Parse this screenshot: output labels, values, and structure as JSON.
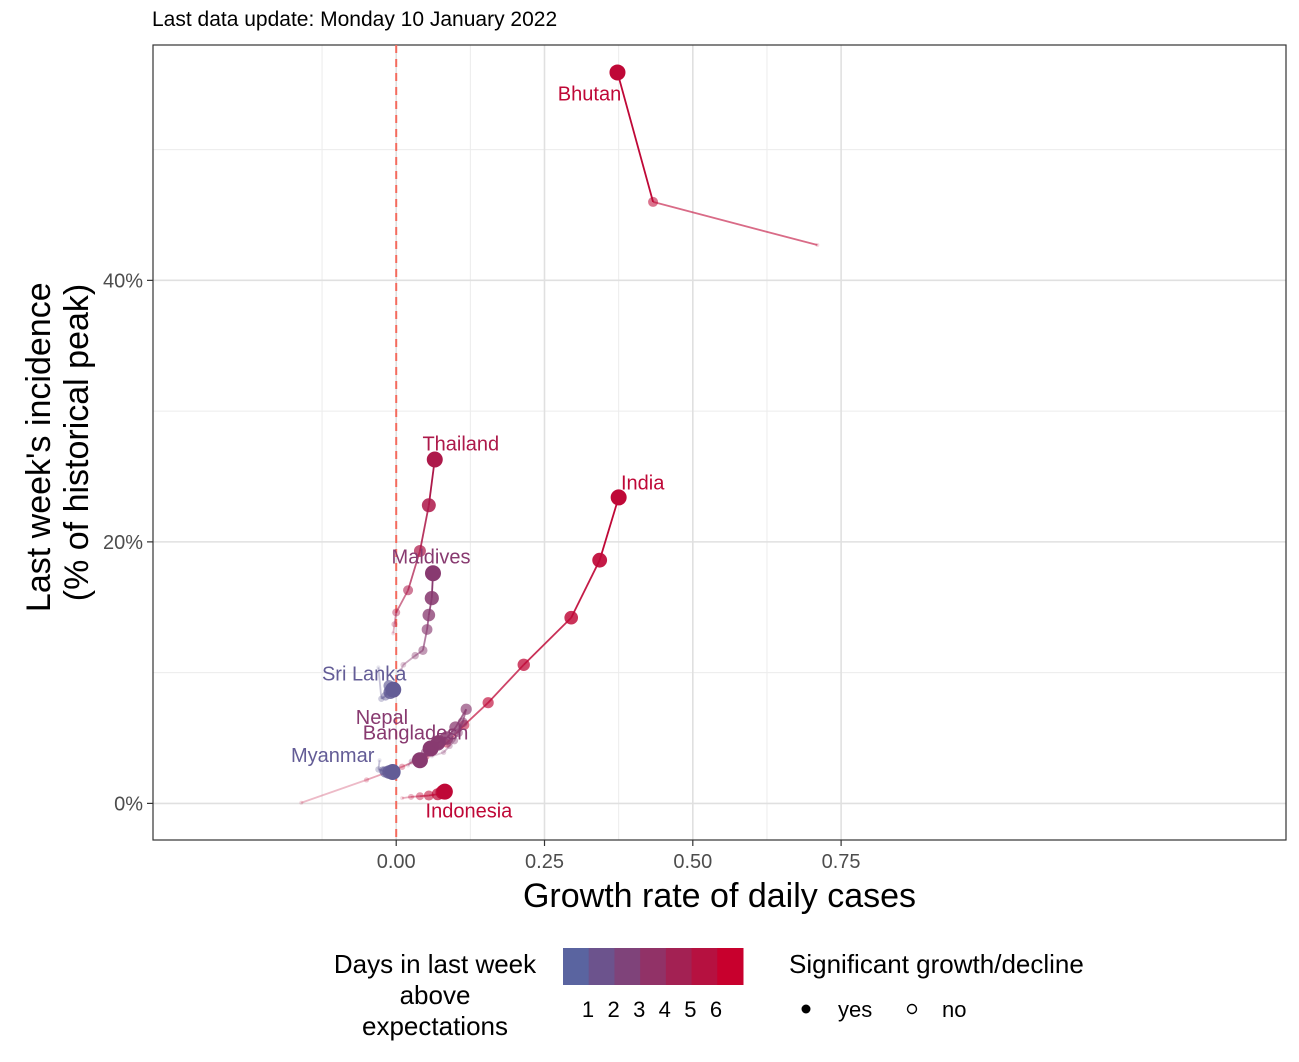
{
  "subtitle": "Last data update: Monday 10 January 2022",
  "chart_data": {
    "type": "scatter",
    "xlabel": "Growth rate of daily cases",
    "ylabel_line1": "Last week's incidence",
    "ylabel_line2": "(% of historical peak)",
    "xlim": [
      -0.41,
      1.5
    ],
    "ylim": [
      -2.8,
      58
    ],
    "x_ticks": [
      {
        "value": 0.0,
        "label": "0.00"
      },
      {
        "value": 0.25,
        "label": "0.25"
      },
      {
        "value": 0.5,
        "label": "0.50"
      },
      {
        "value": 0.75,
        "label": "0.75"
      }
    ],
    "y_ticks": [
      {
        "value": 0,
        "label": "0%"
      },
      {
        "value": 20,
        "label": "20%"
      },
      {
        "value": 40,
        "label": "40%"
      }
    ],
    "reference_line_x": 0,
    "grid": true,
    "legend_placement": "bottom",
    "color_low": "#5a64a0",
    "color_high": "#c8002d",
    "series": [
      {
        "name": "Bhutan",
        "days": 6,
        "points": [
          [
            0.71,
            42.7
          ],
          [
            0.433,
            46.0
          ],
          [
            0.373,
            55.9
          ]
        ]
      },
      {
        "name": "Thailand",
        "days": 5,
        "points": [
          [
            -0.005,
            13.0
          ],
          [
            -0.003,
            13.7
          ],
          [
            0.0,
            14.6
          ],
          [
            0.02,
            16.3
          ],
          [
            0.04,
            19.3
          ],
          [
            0.055,
            22.8
          ],
          [
            0.065,
            26.3
          ]
        ]
      },
      {
        "name": "India",
        "days": 6,
        "points": [
          [
            -0.16,
            0.05
          ],
          [
            -0.05,
            1.8
          ],
          [
            0.01,
            2.8
          ],
          [
            0.05,
            3.6
          ],
          [
            0.085,
            4.6
          ],
          [
            0.115,
            6.0
          ],
          [
            0.155,
            7.7
          ],
          [
            0.215,
            10.6
          ],
          [
            0.295,
            14.2
          ],
          [
            0.343,
            18.6
          ],
          [
            0.375,
            23.4
          ]
        ]
      },
      {
        "name": "Maldives",
        "days": 3,
        "points": [
          [
            0.008,
            10.2
          ],
          [
            0.012,
            10.6
          ],
          [
            0.032,
            11.3
          ],
          [
            0.045,
            11.7
          ],
          [
            0.052,
            13.3
          ],
          [
            0.055,
            14.4
          ],
          [
            0.06,
            15.7
          ],
          [
            0.062,
            17.6
          ]
        ]
      },
      {
        "name": "Sri Lanka",
        "days": 1,
        "points": [
          [
            -0.03,
            10.4
          ],
          [
            -0.025,
            8.0
          ],
          [
            -0.018,
            8.2
          ],
          [
            -0.012,
            9.0
          ],
          [
            -0.01,
            8.5
          ],
          [
            -0.005,
            8.7
          ]
        ]
      },
      {
        "name": "Bangladesh",
        "days": 3,
        "points": [
          [
            0.06,
            3.6
          ],
          [
            0.08,
            3.9
          ],
          [
            0.09,
            4.4
          ],
          [
            0.098,
            4.8
          ],
          [
            0.105,
            5.4
          ],
          [
            0.112,
            6.2
          ],
          [
            0.118,
            7.2
          ],
          [
            0.1,
            5.8
          ],
          [
            0.085,
            5.0
          ],
          [
            0.07,
            4.6
          ],
          [
            0.058,
            4.2
          ]
        ]
      },
      {
        "name": "Nepal",
        "days": 3,
        "points": [
          [
            0.02,
            2.9
          ],
          [
            0.026,
            3.2
          ],
          [
            0.038,
            3.5
          ],
          [
            0.05,
            3.9
          ],
          [
            0.062,
            4.3
          ],
          [
            0.072,
            4.7
          ],
          [
            0.04,
            3.3
          ]
        ]
      },
      {
        "name": "Myanmar",
        "days": 1,
        "points": [
          [
            -0.028,
            3.3
          ],
          [
            -0.03,
            2.6
          ],
          [
            -0.022,
            2.5
          ],
          [
            -0.018,
            2.4
          ],
          [
            -0.012,
            2.4
          ],
          [
            -0.006,
            2.4
          ]
        ]
      },
      {
        "name": "Indonesia",
        "days": 6,
        "points": [
          [
            0.01,
            0.4
          ],
          [
            0.025,
            0.5
          ],
          [
            0.04,
            0.55
          ],
          [
            0.055,
            0.6
          ],
          [
            0.07,
            0.7
          ],
          [
            0.078,
            0.85
          ],
          [
            0.082,
            0.9
          ]
        ]
      }
    ],
    "labels": [
      {
        "series": "Bhutan",
        "text": "Bhutan"
      },
      {
        "series": "Thailand",
        "text": "Thailand"
      },
      {
        "series": "India",
        "text": "India"
      },
      {
        "series": "Maldives",
        "text": "Maldives"
      },
      {
        "series": "Sri Lanka",
        "text": "Sri Lanka"
      },
      {
        "series": "Bangladesh",
        "text": "Bangladesh"
      },
      {
        "series": "Nepal",
        "text": "Nepal"
      },
      {
        "series": "Myanmar",
        "text": "Myanmar"
      },
      {
        "series": "Indonesia",
        "text": "Indonesia"
      }
    ],
    "legend_color": {
      "title_lines": [
        "Days in last week",
        "above",
        "expectations"
      ],
      "ticks": [
        "1",
        "2",
        "3",
        "4",
        "5",
        "6"
      ]
    },
    "legend_shape": {
      "title": "Significant growth/decline",
      "items": [
        "yes",
        "no"
      ]
    }
  }
}
